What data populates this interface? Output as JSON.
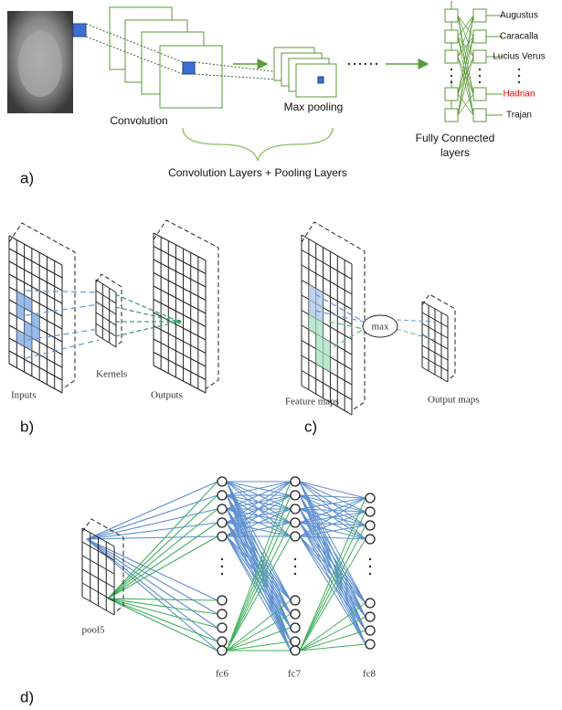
{
  "panel_a": {
    "label": "a)",
    "convolution": "Convolution",
    "max_pooling": "Max pooling",
    "fully_connected": [
      "Fully Connected",
      "layers"
    ],
    "brace_caption": "Convolution Layers + Pooling Layers",
    "classes": [
      "Augustus",
      "Caracalla",
      "Lucius Verus",
      "Hadrian",
      "Trajan"
    ]
  },
  "panel_b": {
    "label": "b)",
    "inputs": "Inputs",
    "kernels": "Kernels",
    "outputs": "Outputs"
  },
  "panel_c": {
    "label": "c)",
    "operation": "max",
    "feature_maps": "Feature maps",
    "output_maps": "Output maps"
  },
  "panel_d": {
    "label": "d)",
    "layers": [
      "pool5",
      "fc6",
      "fc7",
      "fc8"
    ]
  }
}
